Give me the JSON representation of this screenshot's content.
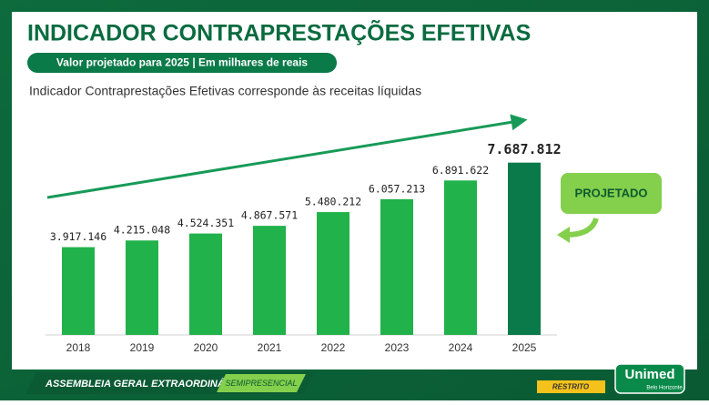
{
  "header": {
    "title": "INDICADOR CONTRAPRESTAÇÕES EFETIVAS",
    "subtitle": "Valor projetado para 2025 | Em milhares de reais",
    "description": "Indicador Contraprestações Efetivas corresponde às receitas líquidas"
  },
  "badge": "PROJETADO",
  "footer": {
    "event": "ASSEMBLEIA GERAL EXTRAORDINÁRIA",
    "mode": "SEMIPRESENCIAL",
    "classification": "RESTRITO",
    "logo": "Unimed",
    "logo_sub": "Belo Horizonte"
  },
  "chart_data": {
    "type": "bar",
    "categories": [
      "2018",
      "2019",
      "2020",
      "2021",
      "2022",
      "2023",
      "2024",
      "2025"
    ],
    "values": [
      3917146,
      4215048,
      4524351,
      4867571,
      5480212,
      6057213,
      6891622,
      7687812
    ],
    "value_labels": [
      "3.917.146",
      "4.215.048",
      "4.524.351",
      "4.867.571",
      "5.480.212",
      "6.057.213",
      "6.891.622",
      "7.687.812"
    ],
    "colors": [
      "#21b24b",
      "#21b24b",
      "#21b24b",
      "#21b24b",
      "#21b24b",
      "#21b24b",
      "#21b24b",
      "#0b7a4b"
    ],
    "ylim": [
      0,
      8000000
    ]
  }
}
